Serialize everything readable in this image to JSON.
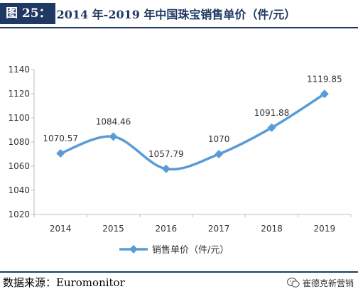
{
  "figure": {
    "label": "图 25：",
    "title": "2014 年-2019 年中国珠宝销售单价（件/元）"
  },
  "source": "数据来源：Euromonitor",
  "watermark": {
    "text": "崔德克新营销",
    "icon": "wechat-icon"
  },
  "colors": {
    "header": "#1f3864",
    "series": "#5b9bd5",
    "axis": "#bfbfbf"
  },
  "chart_data": {
    "type": "line",
    "title": "",
    "xlabel": "",
    "ylabel": "",
    "categories": [
      "2014",
      "2015",
      "2016",
      "2017",
      "2018",
      "2019"
    ],
    "series": [
      {
        "name": "销售单价（件/元）",
        "values": [
          1070.57,
          1084.46,
          1057.79,
          1070,
          1091.88,
          1119.85
        ],
        "labels": [
          "1070.57",
          "1084.46",
          "1057.79",
          "1070",
          "1091.88",
          "1119.85"
        ]
      }
    ],
    "ylim": [
      1020,
      1140
    ],
    "yticks": [
      1020,
      1040,
      1060,
      1080,
      1100,
      1120,
      1140
    ],
    "grid": false,
    "smooth": true,
    "marker": "diamond",
    "legend": "bottom"
  }
}
